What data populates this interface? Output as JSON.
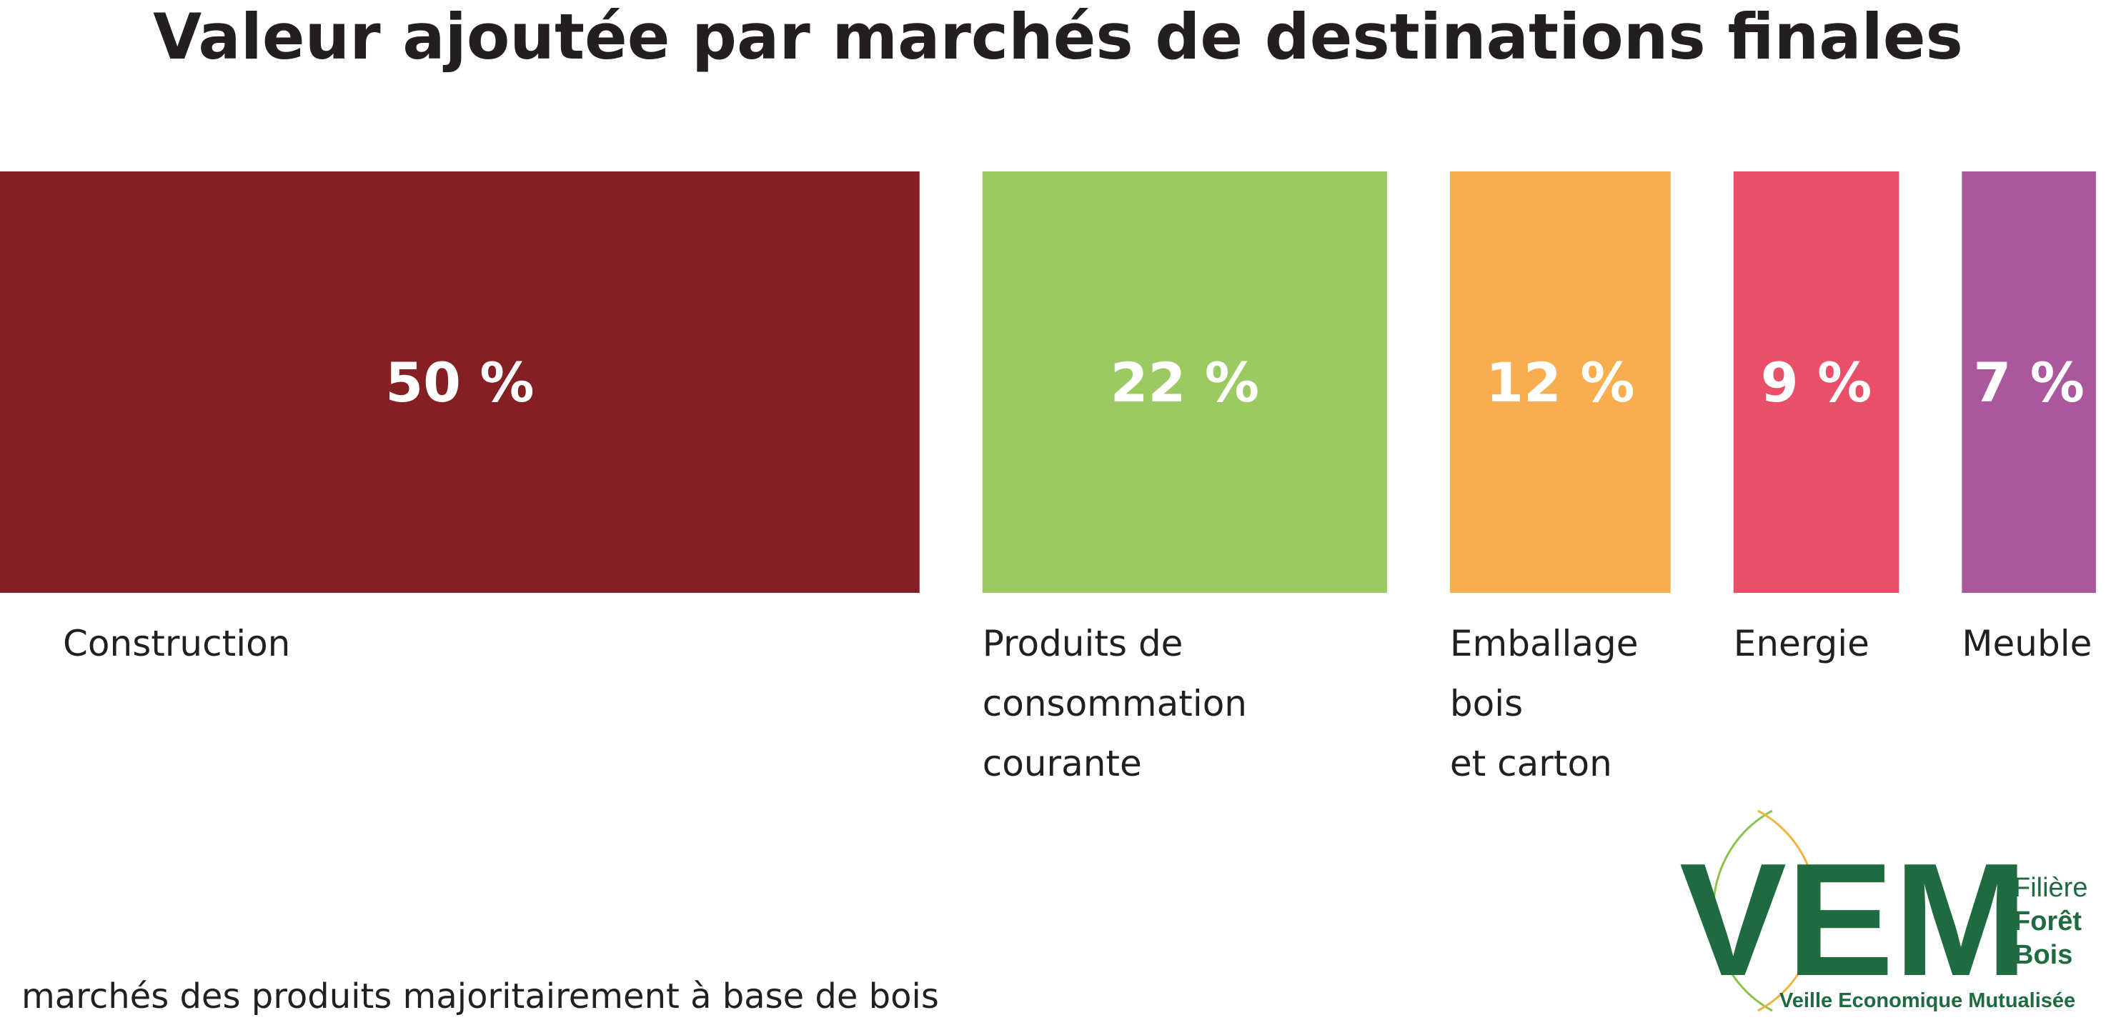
{
  "chart_data": {
    "type": "bar",
    "title": "Valeur ajoutée par marchés de destinations finales",
    "categories": [
      [
        "Construction"
      ],
      [
        "Produits de",
        "consommation",
        "courante"
      ],
      [
        "Emballage",
        "bois",
        "et carton"
      ],
      [
        "Energie"
      ],
      [
        "Meuble"
      ]
    ],
    "values": [
      50,
      22,
      12,
      9,
      7
    ],
    "value_labels": [
      "50 %",
      "22 %",
      "12 %",
      "9 %",
      "7 %"
    ],
    "unit": "%",
    "colors": [
      "#841f24",
      "#9bca63",
      "#f8ad4e",
      "#ea4f6a",
      "#ab579d"
    ],
    "grid": false,
    "legend": "none"
  },
  "footnote": "marchés des produits majoritairement à base de bois",
  "logo": {
    "letters": "VEM",
    "side_lines": [
      "Filière",
      "Forêt",
      "Bois"
    ],
    "tagline": "Veille Economique Mutualisée",
    "color": "#1e6b3f",
    "accent_color": "#f3b43e",
    "light_color": "#8bc34a"
  }
}
